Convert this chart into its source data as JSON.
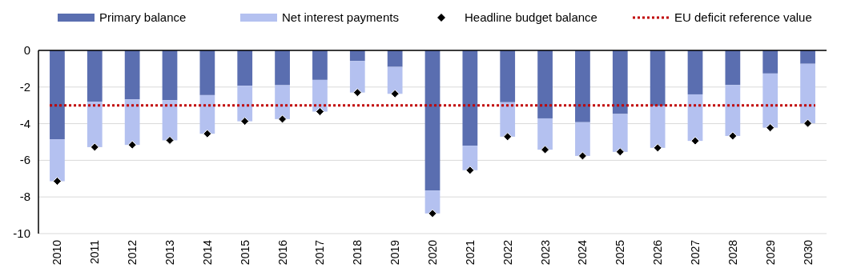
{
  "chart_data": {
    "type": "bar",
    "stacked": true,
    "categories": [
      "2010",
      "2011",
      "2012",
      "2013",
      "2014",
      "2015",
      "2016",
      "2017",
      "2018",
      "2019",
      "2020",
      "2021",
      "2022",
      "2023",
      "2024",
      "2025",
      "2026",
      "2027",
      "2028",
      "2029",
      "2030"
    ],
    "series": [
      {
        "name": "Primary balance",
        "color": "#5a6eb0",
        "values": [
          -4.85,
          -2.8,
          -2.67,
          -2.72,
          -2.44,
          -1.93,
          -1.9,
          -1.61,
          -0.58,
          -0.9,
          -7.65,
          -5.2,
          -2.83,
          -3.71,
          -3.92,
          -3.47,
          -3.04,
          -2.4,
          -1.89,
          -1.26,
          -0.73
        ]
      },
      {
        "name": "Net interest payments",
        "color": "#b4c1f0",
        "values": [
          -2.29,
          -2.48,
          -2.49,
          -2.19,
          -2.11,
          -1.94,
          -1.85,
          -1.73,
          -1.72,
          -1.47,
          -1.25,
          -1.34,
          -1.88,
          -1.71,
          -1.84,
          -2.07,
          -2.28,
          -2.54,
          -2.78,
          -2.96,
          -3.25
        ]
      },
      {
        "name": "Headline budget balance",
        "type": "scatter",
        "marker": "diamond",
        "color": "#000000",
        "values": [
          -7.14,
          -5.28,
          -5.16,
          -4.91,
          -4.55,
          -3.87,
          -3.75,
          -3.34,
          -2.3,
          -2.37,
          -8.9,
          -6.54,
          -4.71,
          -5.42,
          -5.76,
          -5.54,
          -5.32,
          -4.94,
          -4.67,
          -4.22,
          -3.98
        ]
      }
    ],
    "ref_lines": [
      {
        "axis": "y",
        "value": -3,
        "label": "EU deficit reference value",
        "color": "#c00000",
        "line_style": "dotted"
      }
    ],
    "ylim": [
      -10,
      0
    ],
    "yticks": [
      -10,
      -8,
      -6,
      -4,
      -2,
      0
    ],
    "grid": "y",
    "legend": "top"
  }
}
